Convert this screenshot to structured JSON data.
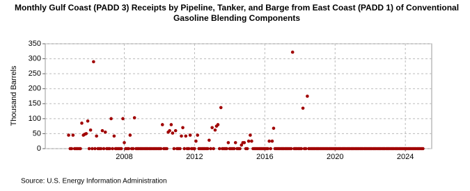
{
  "chart_data": {
    "type": "scatter",
    "title": "Monthly Gulf Coast (PADD 3) Receipts by Pipeline, Tanker, and Barge from East Coast (PADD 1) of Conventional Gasoline Blending Components",
    "y_label": "Thousand Barrels",
    "source": "Source: U.S. Energy Information Administration",
    "color": "#a00000",
    "grid": true,
    "xlim": [
      2003.5,
      2025.5
    ],
    "xticks": [
      2008,
      2012,
      2016,
      2020,
      2024
    ],
    "ylim": [
      0,
      350
    ],
    "yticks": [
      0,
      50,
      100,
      150,
      200,
      250,
      300,
      350
    ],
    "x": [
      2004.83,
      2004.92,
      2005,
      2005.08,
      2005.17,
      2005.25,
      2005.33,
      2005.42,
      2005.5,
      2005.58,
      2005.67,
      2005.75,
      2005.83,
      2005.92,
      2006,
      2006.08,
      2006.17,
      2006.25,
      2006.33,
      2006.42,
      2006.5,
      2006.58,
      2006.67,
      2006.75,
      2006.83,
      2006.92,
      2007,
      2007.08,
      2007.17,
      2007.25,
      2007.33,
      2007.42,
      2007.5,
      2007.58,
      2007.67,
      2007.75,
      2007.83,
      2007.92,
      2008,
      2008.08,
      2008.17,
      2008.25,
      2008.33,
      2008.42,
      2008.5,
      2008.58,
      2008.67,
      2008.75,
      2008.83,
      2008.92,
      2009,
      2009.08,
      2009.17,
      2009.25,
      2009.33,
      2009.42,
      2009.5,
      2009.58,
      2009.67,
      2009.75,
      2009.83,
      2009.92,
      2010,
      2010.08,
      2010.17,
      2010.25,
      2010.33,
      2010.42,
      2010.5,
      2010.58,
      2010.67,
      2010.75,
      2010.83,
      2010.92,
      2011,
      2011.08,
      2011.17,
      2011.25,
      2011.33,
      2011.42,
      2011.5,
      2011.58,
      2011.67,
      2011.75,
      2011.83,
      2011.92,
      2012,
      2012.08,
      2012.17,
      2012.25,
      2012.33,
      2012.42,
      2012.5,
      2012.58,
      2012.67,
      2012.75,
      2012.83,
      2012.92,
      2013,
      2013.08,
      2013.17,
      2013.25,
      2013.33,
      2013.42,
      2013.5,
      2013.58,
      2013.67,
      2013.75,
      2013.83,
      2013.92,
      2014,
      2014.08,
      2014.17,
      2014.25,
      2014.33,
      2014.42,
      2014.5,
      2014.58,
      2014.67,
      2014.75,
      2014.83,
      2014.92,
      2015,
      2015.08,
      2015.17,
      2015.25,
      2015.33,
      2015.42,
      2015.5,
      2015.58,
      2015.67,
      2015.75,
      2015.83,
      2015.92,
      2016,
      2016.08,
      2016.17,
      2016.25,
      2016.33,
      2016.42,
      2016.5,
      2016.58,
      2016.67,
      2016.75,
      2016.83,
      2016.92,
      2017,
      2017.08,
      2017.17,
      2017.25,
      2017.33,
      2017.42,
      2017.5,
      2017.58,
      2017.67,
      2017.75,
      2017.83,
      2017.92,
      2018,
      2018.08,
      2018.17,
      2018.25,
      2018.33,
      2018.42,
      2018.5,
      2018.58,
      2018.67,
      2018.75,
      2018.83,
      2018.92,
      2019,
      2019.08,
      2019.17,
      2019.25,
      2019.33,
      2019.42,
      2019.5,
      2019.58,
      2019.67,
      2019.75,
      2019.83,
      2019.92,
      2020,
      2020.08,
      2020.17,
      2020.25,
      2020.33,
      2020.42,
      2020.5,
      2020.58,
      2020.67,
      2020.75,
      2020.83,
      2020.92,
      2021,
      2021.08,
      2021.17,
      2021.25,
      2021.33,
      2021.42,
      2021.5,
      2021.58,
      2021.67,
      2021.75,
      2021.83,
      2021.92,
      2022,
      2022.08,
      2022.17,
      2022.25,
      2022.33,
      2022.42,
      2022.5,
      2022.58,
      2022.67,
      2022.75,
      2022.83,
      2022.92,
      2023,
      2023.08,
      2023.17,
      2023.25,
      2023.33,
      2023.42,
      2023.5,
      2023.58,
      2023.67,
      2023.75,
      2023.83,
      2023.92,
      2024,
      2024.08,
      2024.17,
      2024.25,
      2024.33,
      2024.42,
      2024.5,
      2024.58,
      2024.67,
      2024.75,
      2024.83,
      2024.92,
      2025
    ],
    "values": [
      45,
      0,
      0,
      45,
      0,
      0,
      0,
      0,
      0,
      85,
      45,
      48,
      50,
      92,
      0,
      62,
      0,
      290,
      0,
      42,
      0,
      0,
      0,
      60,
      0,
      55,
      0,
      0,
      0,
      100,
      0,
      42,
      0,
      0,
      0,
      0,
      0,
      100,
      20,
      0,
      0,
      0,
      45,
      0,
      0,
      103,
      0,
      0,
      0,
      0,
      0,
      0,
      0,
      0,
      0,
      0,
      0,
      0,
      0,
      0,
      0,
      0,
      0,
      0,
      80,
      0,
      0,
      0,
      55,
      60,
      80,
      52,
      0,
      60,
      0,
      0,
      0,
      42,
      70,
      0,
      42,
      0,
      0,
      45,
      0,
      0,
      0,
      25,
      45,
      0,
      0,
      0,
      0,
      0,
      0,
      0,
      28,
      0,
      70,
      0,
      62,
      75,
      80,
      0,
      137,
      0,
      0,
      0,
      0,
      20,
      0,
      0,
      0,
      0,
      20,
      0,
      0,
      0,
      12,
      20,
      20,
      0,
      0,
      25,
      45,
      25,
      0,
      0,
      0,
      0,
      0,
      0,
      0,
      0,
      0,
      0,
      0,
      25,
      0,
      25,
      68,
      0,
      0,
      0,
      0,
      0,
      0,
      0,
      0,
      0,
      0,
      0,
      0,
      322,
      0,
      0,
      0,
      0,
      0,
      0,
      135,
      0,
      0,
      175,
      0,
      0,
      0,
      0,
      0,
      0,
      0,
      0,
      0,
      0,
      0,
      0,
      0,
      0,
      0,
      0,
      0,
      0,
      0,
      0,
      0,
      0,
      0,
      0,
      0,
      0,
      0,
      0,
      0,
      0,
      0,
      0,
      0,
      0,
      0,
      0,
      0,
      0,
      0,
      0,
      0,
      0,
      0,
      0,
      0,
      0,
      0,
      0,
      0,
      0,
      0,
      0,
      0,
      0,
      0,
      0,
      0,
      0,
      0,
      0,
      0,
      0,
      0,
      0,
      0,
      0,
      0,
      0,
      0,
      0,
      0,
      0,
      0,
      0,
      0,
      0,
      0,
      0,
      0
    ]
  }
}
